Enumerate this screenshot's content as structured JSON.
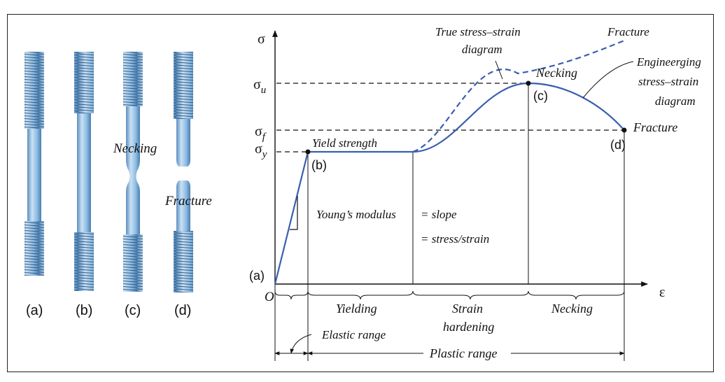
{
  "specimens": {
    "labels": [
      "(a)",
      "(b)",
      "(c)",
      "(d)"
    ],
    "necking": "Necking",
    "fracture": "Fracture"
  },
  "chart": {
    "y_axis": "σ",
    "x_axis": "ε",
    "origin": "O",
    "origin_point": "(a)",
    "sigma_u": "σ",
    "sigma_u_sub": "u",
    "sigma_f": "σ",
    "sigma_f_sub": "f",
    "sigma_y": "σ",
    "sigma_y_sub": "y",
    "true_curve_label_1": "True stress–strain",
    "true_curve_label_2": "diagram",
    "fracture_true": "Fracture",
    "necking_point": "Necking",
    "eng_label_1": "Engineerging",
    "eng_label_2": "stress–strain",
    "eng_label_3": "diagram",
    "fracture_eng": "Fracture",
    "point_b": "(b)",
    "point_c": "(c)",
    "point_d": "(d)",
    "yield_strength": "Yield strength",
    "youngs_1a": "Young’s modulus",
    "youngs_1b": "= slope",
    "youngs_2": "= stress/strain",
    "region_yielding": "Yielding",
    "region_strain_1": "Strain",
    "region_strain_2": "hardening",
    "region_necking": "Necking",
    "elastic_range": "Elastic range",
    "plastic_range": "Plastic range",
    "colors": {
      "curve": "#3a5fb0",
      "bar_light": "#b9d6ee",
      "bar_mid": "#7fb0da",
      "bar_dark": "#4a7fb0"
    }
  }
}
